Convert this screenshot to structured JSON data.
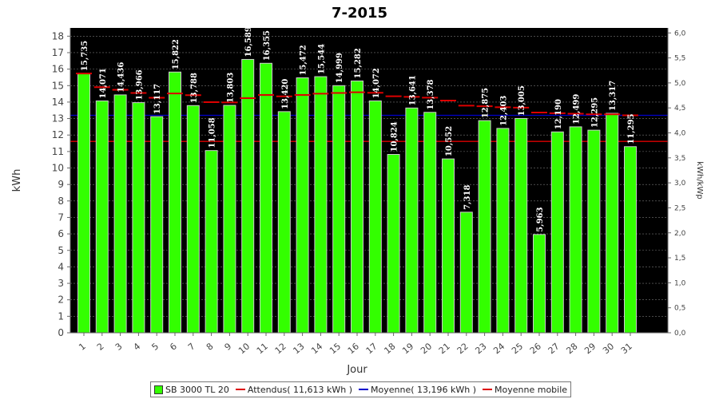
{
  "chart_data": {
    "type": "bar",
    "title": "7-2015",
    "xlabel": "Jour",
    "ylabel": "kWh",
    "y2label": "kWh/kWp",
    "categories": [
      "1",
      "2",
      "3",
      "4",
      "5",
      "6",
      "7",
      "8",
      "9",
      "10",
      "11",
      "12",
      "13",
      "14",
      "15",
      "16",
      "17",
      "18",
      "19",
      "20",
      "21",
      "22",
      "23",
      "24",
      "25",
      "26",
      "27",
      "28",
      "29",
      "30",
      "31"
    ],
    "value_labels": [
      "15,735",
      "14,071",
      "14,436",
      "13,966",
      "13,117",
      "15,822",
      "13,788",
      "11,058",
      "13,803",
      "16,589",
      "16,355",
      "13,420",
      "15,472",
      "15,544",
      "14,999",
      "15,282",
      "14,072",
      "10,824",
      "13,641",
      "13,378",
      "10,552",
      "7,318",
      "12,875",
      "12,403",
      "13,005",
      "5,963",
      "12,190",
      "12,499",
      "12,295",
      "13,317",
      "11,295"
    ],
    "series": [
      {
        "name": "SB 3000 TL 20",
        "type": "bar",
        "color": "#33ff00",
        "values": [
          15.735,
          14.071,
          14.436,
          13.966,
          13.117,
          15.822,
          13.788,
          11.058,
          13.803,
          16.589,
          16.355,
          13.42,
          15.472,
          15.544,
          14.999,
          15.282,
          14.072,
          10.824,
          13.641,
          13.378,
          10.552,
          7.318,
          12.875,
          12.403,
          13.005,
          5.963,
          12.19,
          12.499,
          12.295,
          13.317,
          11.295
        ]
      },
      {
        "name": "Moyenne mobile",
        "type": "step",
        "color": "#dd0000",
        "values": [
          15.735,
          14.903,
          14.747,
          14.552,
          14.265,
          14.525,
          14.42,
          13.999,
          13.977,
          14.239,
          14.431,
          14.347,
          14.433,
          14.512,
          14.55,
          14.596,
          14.564,
          14.356,
          14.318,
          14.27,
          14.093,
          13.785,
          13.745,
          13.689,
          13.662,
          13.366,
          13.322,
          13.292,
          13.258,
          13.26,
          13.197
        ]
      },
      {
        "name": "Attendus",
        "type": "hline",
        "color": "#dd0000",
        "value": 11.613,
        "legend": "Attendus( 11,613 kWh )"
      },
      {
        "name": "Moyenne",
        "type": "hline",
        "color": "#0000cc",
        "value": 13.196,
        "legend": "Moyenne( 13,196 kWh )"
      }
    ],
    "ylim": [
      0,
      18.5
    ],
    "yticks": [
      0,
      1,
      2,
      3,
      4,
      5,
      6,
      7,
      8,
      9,
      10,
      11,
      12,
      13,
      14,
      15,
      16,
      17,
      18
    ],
    "y2lim": [
      0,
      6.1
    ],
    "y2ticks": [
      "0,0",
      "0,5",
      "1,0",
      "1,5",
      "2,0",
      "2,5",
      "3,0",
      "3,5",
      "4,0",
      "4,5",
      "5,0",
      "5,5",
      "6,0"
    ],
    "grid": true,
    "legend_position": "bottom"
  },
  "legend": {
    "items": [
      {
        "label": "SB 3000 TL 20",
        "color": "#33ff00",
        "kind": "box"
      },
      {
        "label": "Attendus( 11,613 kWh )",
        "color": "#dd0000",
        "kind": "line"
      },
      {
        "label": "Moyenne( 13,196 kWh )",
        "color": "#0000cc",
        "kind": "line"
      },
      {
        "label": "Moyenne mobile",
        "color": "#dd0000",
        "kind": "line"
      }
    ]
  }
}
